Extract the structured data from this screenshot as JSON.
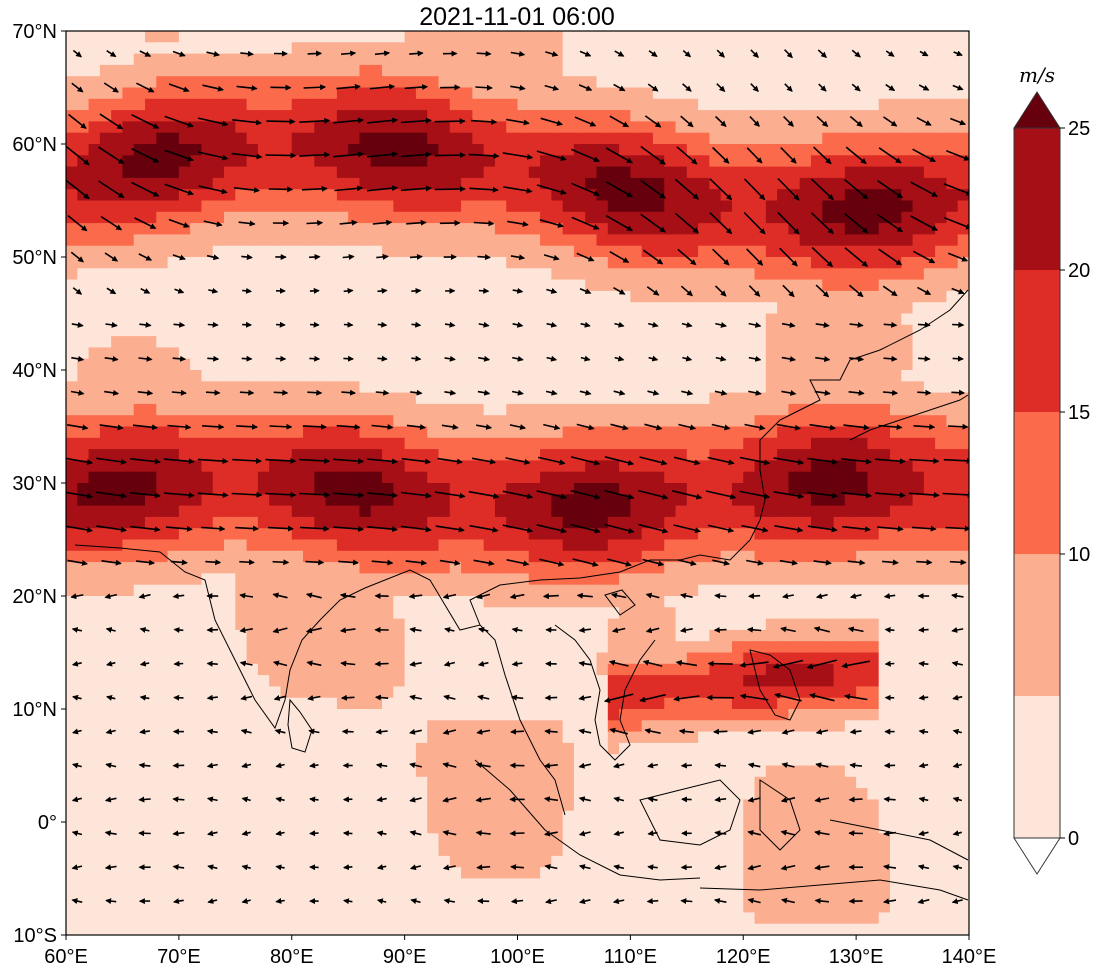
{
  "title": "2021-11-01 06:00",
  "map": {
    "lon_range": [
      60,
      140
    ],
    "lat_range": [
      -10,
      70
    ],
    "x_ticks": [
      {
        "value": 60,
        "label": "60°E"
      },
      {
        "value": 70,
        "label": "70°E"
      },
      {
        "value": 80,
        "label": "80°E"
      },
      {
        "value": 90,
        "label": "90°E"
      },
      {
        "value": 100,
        "label": "100°E"
      },
      {
        "value": 110,
        "label": "110°E"
      },
      {
        "value": 120,
        "label": "120°E"
      },
      {
        "value": 130,
        "label": "130°E"
      },
      {
        "value": 140,
        "label": "140°E"
      }
    ],
    "y_ticks": [
      {
        "value": 70,
        "label": "70°N"
      },
      {
        "value": 60,
        "label": "60°N"
      },
      {
        "value": 50,
        "label": "50°N"
      },
      {
        "value": 40,
        "label": "40°N"
      },
      {
        "value": 30,
        "label": "30°N"
      },
      {
        "value": 20,
        "label": "20°N"
      },
      {
        "value": 10,
        "label": "10°N"
      },
      {
        "value": 0,
        "label": "0°"
      },
      {
        "value": -10,
        "label": "10°S"
      }
    ]
  },
  "colorbar": {
    "unit": "m/s",
    "levels": [
      0,
      5,
      10,
      15,
      20,
      25
    ],
    "tick_labels": [
      {
        "value": 0,
        "label": "0"
      },
      {
        "value": 10,
        "label": "10"
      },
      {
        "value": 15,
        "label": "15"
      },
      {
        "value": 20,
        "label": "20"
      },
      {
        "value": 25,
        "label": "25"
      }
    ],
    "colors": [
      "#fee5d9",
      "#fcae91",
      "#fb6a4a",
      "#de2d26",
      "#a50f15",
      "#67000d"
    ],
    "under_color": "#ffffff",
    "over_color": "#67000d"
  },
  "chart_data": {
    "type": "heatmap",
    "title": "2021-11-01 06:00",
    "variable": "wind speed with wind vectors",
    "unit": "m/s",
    "xlabel": "",
    "ylabel": "",
    "x_range": [
      60,
      140
    ],
    "y_range": [
      -10,
      70
    ],
    "jet_bands": [
      {
        "lat_center": 57,
        "lon_extent": [
          60,
          140
        ],
        "approx_max_speed": 25
      },
      {
        "lat_center": 29,
        "lon_extent": [
          60,
          140
        ],
        "approx_max_speed": 25
      },
      {
        "lat_center": 12,
        "lon_extent": [
          110,
          130
        ],
        "approx_max_speed": 20
      }
    ]
  }
}
